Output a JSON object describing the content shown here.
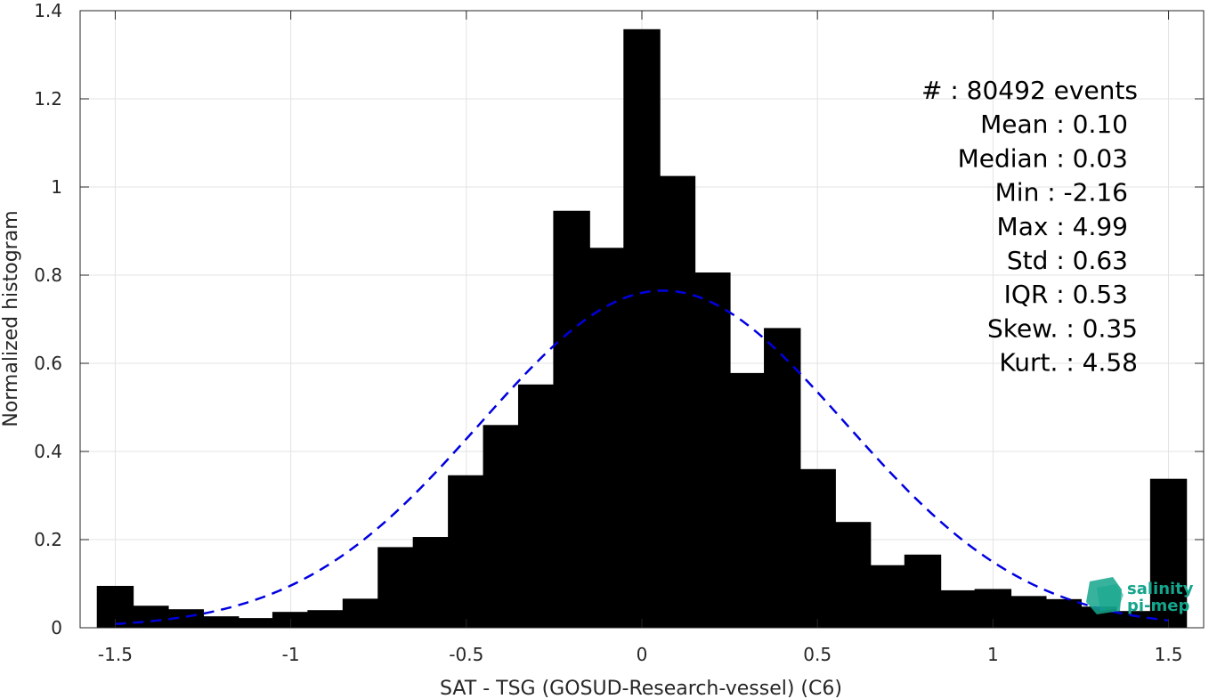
{
  "chart_data": {
    "type": "bar",
    "xlabel": "SAT - TSG (GOSUD-Research-vessel) (C6)",
    "ylabel": "Normalized histogram",
    "xlim": [
      -1.6,
      1.6
    ],
    "ylim": [
      0,
      1.4
    ],
    "x_ticks": [
      "-1.5",
      "-1",
      "-0.5",
      "0",
      "0.5",
      "1",
      "1.5"
    ],
    "x_tick_values": [
      -1.5,
      -1,
      -0.5,
      0,
      0.5,
      1,
      1.5
    ],
    "y_ticks": [
      "0",
      "0.2",
      "0.4",
      "0.6",
      "0.8",
      "1",
      "1.2",
      "1.4"
    ],
    "y_tick_values": [
      0,
      0.2,
      0.4,
      0.6,
      0.8,
      1,
      1.2,
      1.4
    ],
    "grid": true,
    "bar_color": "#000000",
    "bins": [
      -1.5,
      -1.4,
      -1.3,
      -1.2,
      -1.1,
      -1.0,
      -0.9,
      -0.8,
      -0.7,
      -0.6,
      -0.5,
      -0.4,
      -0.3,
      -0.2,
      -0.1,
      0.0,
      0.1,
      0.2,
      0.3,
      0.4,
      0.5,
      0.6,
      0.7,
      0.8,
      0.9,
      1.0,
      1.1,
      1.2,
      1.3,
      1.4,
      1.5
    ],
    "values": [
      0.095,
      0.05,
      0.042,
      0.026,
      0.022,
      0.036,
      0.04,
      0.066,
      0.183,
      0.206,
      0.346,
      0.46,
      0.552,
      0.946,
      0.862,
      1.358,
      1.025,
      0.806,
      0.578,
      0.68,
      0.36,
      0.24,
      0.142,
      0.166,
      0.085,
      0.088,
      0.072,
      0.065,
      0.048,
      0.038,
      0.338
    ],
    "fit": {
      "type": "normal",
      "mean": 0.06,
      "std": 0.52,
      "color": "#0000e0",
      "style": "dashed",
      "x_range": [
        -1.5,
        1.5
      ]
    },
    "stats": [
      {
        "label": "#  : 80492 events"
      },
      {
        "label": "Mean : 0.10"
      },
      {
        "label": "Median : 0.03"
      },
      {
        "label": "Min : -2.16"
      },
      {
        "label": "Max : 4.99"
      },
      {
        "label": "Std : 0.63"
      },
      {
        "label": "IQR : 0.53"
      },
      {
        "label": "Skew. : 0.35"
      },
      {
        "label": "Kurt. : 4.58"
      }
    ]
  },
  "logo": {
    "line1": "salinity",
    "line2": "pi-mep",
    "color": "#14a58c"
  }
}
